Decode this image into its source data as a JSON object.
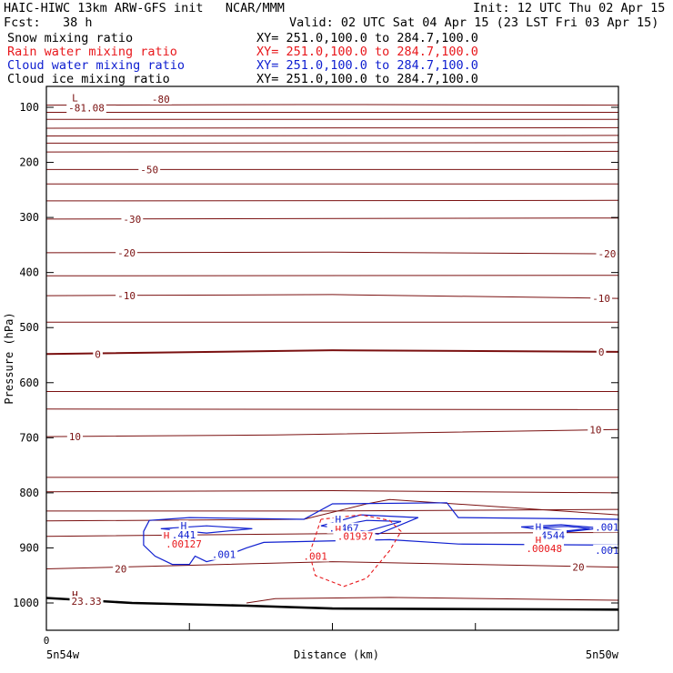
{
  "header": {
    "model_line": "HAIC-HIWC 13km ARW-GFS init   NCAR/MMM",
    "fcst_line": "Fcst:   38 h",
    "init_line": "Init: 12 UTC Thu 02 Apr 15",
    "valid_line": "Valid: 02 UTC Sat 04 Apr 15 (23 LST Fri 03 Apr 15)",
    "fields": [
      {
        "name": "Snow mixing ratio",
        "xy": "XY= 251.0,100.0 to 284.7,100.0",
        "color": "#000000"
      },
      {
        "name": "Rain water mixing ratio",
        "xy": "XY= 251.0,100.0 to 284.7,100.0",
        "color": "#e8181c"
      },
      {
        "name": "Cloud water mixing ratio",
        "xy": "XY= 251.0,100.0 to 284.7,100.0",
        "color": "#1020d0"
      },
      {
        "name": "Cloud ice mixing ratio",
        "xy": "XY= 251.0,100.0 to 284.7,100.0",
        "color": "#000000"
      }
    ]
  },
  "chart_data": {
    "type": "contour cross-section",
    "ylabel": "Pressure (hPa)",
    "xlabel": "Distance (km)",
    "x_left_label": "5n54w",
    "x_right_label": "5n50w",
    "x_zero_label": "0",
    "yticks": [
      100,
      200,
      300,
      400,
      500,
      600,
      700,
      800,
      900,
      1000
    ],
    "ylim": [
      1050,
      65
    ],
    "colors": {
      "temperature": "#7a1010",
      "rain": "#e8181c",
      "cloud": "#1020d0",
      "frame": "#000000"
    },
    "temperature_labels": [
      {
        "text": "-80",
        "p": 85,
        "x": 0.2
      },
      {
        "text": "-81.08",
        "p": 101,
        "x": 0.07
      },
      {
        "text": "-50",
        "p": 213,
        "x": 0.18
      },
      {
        "text": "-30",
        "p": 303,
        "x": 0.15
      },
      {
        "text": "-20",
        "p": 364,
        "x": 0.14
      },
      {
        "text": "-20",
        "p": 366,
        "x": 0.98
      },
      {
        "text": "-10",
        "p": 442,
        "x": 0.14
      },
      {
        "text": "-10",
        "p": 447,
        "x": 0.97
      },
      {
        "text": "0",
        "p": 548,
        "x": 0.09
      },
      {
        "text": "0",
        "p": 544,
        "x": 0.97
      },
      {
        "text": "10",
        "p": 698,
        "x": 0.05
      },
      {
        "text": "10",
        "p": 685,
        "x": 0.96
      },
      {
        "text": "20",
        "p": 938,
        "x": 0.13
      },
      {
        "text": "20",
        "p": 935,
        "x": 0.93
      },
      {
        "text": "L",
        "p": 83,
        "x": 0.05
      },
      {
        "text": "H",
        "p": 985,
        "x": 0.05
      },
      {
        "text": "23.33",
        "p": 997,
        "x": 0.07
      }
    ],
    "cloud_labels": [
      {
        "text": "H",
        "p": 860,
        "x": 0.24
      },
      {
        "text": ".441",
        "p": 876,
        "x": 0.24
      },
      {
        "text": "H",
        "p": 848,
        "x": 0.51
      },
      {
        "text": ".8467",
        "p": 864,
        "x": 0.52
      },
      {
        "text": "H",
        "p": 862,
        "x": 0.86
      },
      {
        "text": ".4544",
        "p": 877,
        "x": 0.88
      },
      {
        "text": ".001",
        "p": 912,
        "x": 0.31
      },
      {
        "text": ".001",
        "p": 862,
        "x": 0.98
      },
      {
        "text": ".001",
        "p": 904,
        "x": 0.98
      }
    ],
    "rain_labels": [
      {
        "text": "H",
        "p": 878,
        "x": 0.21
      },
      {
        "text": ".00127",
        "p": 893,
        "x": 0.24
      },
      {
        "text": "H",
        "p": 866,
        "x": 0.51
      },
      {
        "text": ".01937",
        "p": 879,
        "x": 0.54
      },
      {
        "text": "H",
        "p": 886,
        "x": 0.86
      },
      {
        "text": ".00048",
        "p": 901,
        "x": 0.87
      },
      {
        "text": ".001",
        "p": 915,
        "x": 0.47
      }
    ],
    "temperature_lines": [
      {
        "pts": [
          [
            0.0,
            96
          ],
          [
            0.45,
            95
          ],
          [
            0.55,
            95
          ],
          [
            1.0,
            96
          ]
        ]
      },
      {
        "pts": [
          [
            0.0,
            109
          ],
          [
            0.5,
            109
          ],
          [
            1.0,
            109
          ]
        ]
      },
      {
        "pts": [
          [
            0.0,
            122
          ],
          [
            1.0,
            122
          ]
        ]
      },
      {
        "pts": [
          [
            0.0,
            138
          ],
          [
            1.0,
            137
          ]
        ]
      },
      {
        "pts": [
          [
            0.0,
            152
          ],
          [
            1.0,
            151
          ]
        ]
      },
      {
        "pts": [
          [
            0.0,
            165
          ],
          [
            1.0,
            164
          ]
        ]
      },
      {
        "pts": [
          [
            0.0,
            181
          ],
          [
            1.0,
            180
          ]
        ]
      },
      {
        "pts": [
          [
            0.0,
            213
          ],
          [
            0.5,
            213
          ],
          [
            1.0,
            213
          ]
        ]
      },
      {
        "pts": [
          [
            0.0,
            239
          ],
          [
            1.0,
            239
          ]
        ]
      },
      {
        "pts": [
          [
            0.0,
            270
          ],
          [
            1.0,
            269
          ]
        ]
      },
      {
        "pts": [
          [
            0.0,
            303
          ],
          [
            1.0,
            301
          ]
        ]
      },
      {
        "pts": [
          [
            0.0,
            364
          ],
          [
            0.5,
            363
          ],
          [
            1.0,
            366
          ]
        ]
      },
      {
        "pts": [
          [
            0.0,
            406
          ],
          [
            1.0,
            405
          ]
        ]
      },
      {
        "pts": [
          [
            0.0,
            442
          ],
          [
            0.5,
            440
          ],
          [
            1.0,
            447
          ]
        ]
      },
      {
        "pts": [
          [
            0.0,
            490
          ],
          [
            1.0,
            490
          ]
        ]
      },
      {
        "pts": [
          [
            0.0,
            548
          ],
          [
            0.5,
            541
          ],
          [
            1.0,
            544
          ]
        ]
      },
      {
        "pts": [
          [
            0.0,
            616
          ],
          [
            1.0,
            616
          ]
        ]
      },
      {
        "pts": [
          [
            0.0,
            648
          ],
          [
            1.0,
            649
          ]
        ]
      },
      {
        "pts": [
          [
            0.0,
            698
          ],
          [
            0.4,
            695
          ],
          [
            1.0,
            685
          ]
        ]
      },
      {
        "pts": [
          [
            0.0,
            772
          ],
          [
            1.0,
            772
          ]
        ]
      },
      {
        "pts": [
          [
            0.0,
            833
          ],
          [
            0.5,
            833
          ],
          [
            1.0,
            830
          ]
        ]
      },
      {
        "pts": [
          [
            0.0,
            798
          ],
          [
            0.5,
            796
          ],
          [
            1.0,
            800
          ]
        ]
      },
      {
        "pts": [
          [
            0.0,
            851
          ],
          [
            0.45,
            848
          ],
          [
            0.56,
            820
          ],
          [
            0.6,
            812
          ],
          [
            1.0,
            840
          ]
        ]
      },
      {
        "pts": [
          [
            0.0,
            879
          ],
          [
            0.5,
            874
          ],
          [
            1.0,
            872
          ]
        ]
      },
      {
        "pts": [
          [
            0.0,
            938
          ],
          [
            0.5,
            925
          ],
          [
            1.0,
            935
          ]
        ]
      },
      {
        "pts": [
          [
            0.35,
            1000
          ],
          [
            0.4,
            992
          ],
          [
            0.6,
            990
          ],
          [
            1.0,
            995
          ]
        ]
      }
    ],
    "surface_line": {
      "pts": [
        [
          0.0,
          991
        ],
        [
          0.15,
          1000
        ],
        [
          0.35,
          1005
        ],
        [
          0.5,
          1010
        ],
        [
          1.0,
          1012
        ]
      ]
    },
    "rain_contours": [
      {
        "pts": [
          [
            0.48,
            848
          ],
          [
            0.47,
            880
          ],
          [
            0.46,
            910
          ],
          [
            0.47,
            950
          ],
          [
            0.52,
            970
          ],
          [
            0.56,
            955
          ],
          [
            0.6,
            905
          ],
          [
            0.62,
            870
          ],
          [
            0.6,
            850
          ],
          [
            0.55,
            840
          ],
          [
            0.48,
            848
          ]
        ]
      }
    ],
    "cloud_contours": [
      {
        "pts": [
          [
            0.18,
            850
          ],
          [
            0.25,
            845
          ],
          [
            0.45,
            848
          ],
          [
            0.5,
            820
          ],
          [
            0.7,
            818
          ],
          [
            0.72,
            845
          ],
          [
            1.0,
            848
          ],
          [
            1.0,
            895
          ],
          [
            0.72,
            893
          ],
          [
            0.6,
            885
          ],
          [
            0.38,
            890
          ],
          [
            0.35,
            900
          ],
          [
            0.3,
            920
          ],
          [
            0.28,
            925
          ],
          [
            0.26,
            915
          ],
          [
            0.25,
            930
          ],
          [
            0.22,
            930
          ],
          [
            0.19,
            915
          ],
          [
            0.17,
            895
          ],
          [
            0.17,
            870
          ],
          [
            0.18,
            850
          ]
        ]
      },
      {
        "pts": [
          [
            0.2,
            865
          ],
          [
            0.28,
            860
          ],
          [
            0.36,
            865
          ],
          [
            0.28,
            873
          ],
          [
            0.2,
            865
          ]
        ]
      },
      {
        "pts": [
          [
            0.48,
            860
          ],
          [
            0.55,
            840
          ],
          [
            0.65,
            845
          ],
          [
            0.58,
            875
          ],
          [
            0.48,
            860
          ]
        ]
      },
      {
        "pts": [
          [
            0.5,
            862
          ],
          [
            0.56,
            850
          ],
          [
            0.62,
            852
          ],
          [
            0.56,
            870
          ],
          [
            0.5,
            862
          ]
        ]
      },
      {
        "pts": [
          [
            0.83,
            862
          ],
          [
            0.9,
            858
          ],
          [
            0.97,
            864
          ],
          [
            0.9,
            872
          ],
          [
            0.83,
            862
          ]
        ]
      },
      {
        "pts": [
          [
            0.86,
            863
          ],
          [
            0.91,
            861
          ],
          [
            0.95,
            865
          ],
          [
            0.91,
            869
          ],
          [
            0.86,
            863
          ]
        ]
      }
    ]
  }
}
